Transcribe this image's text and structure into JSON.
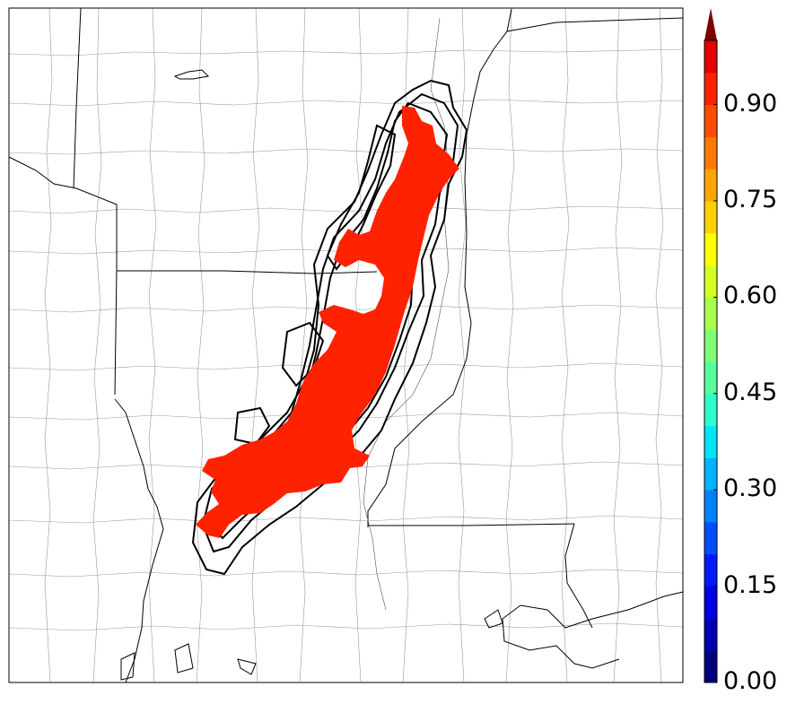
{
  "colorbar": {
    "ticks": [
      {
        "value": 0.0,
        "label": "0.00"
      },
      {
        "value": 0.15,
        "label": "0.15"
      },
      {
        "value": 0.3,
        "label": "0.30"
      },
      {
        "value": 0.45,
        "label": "0.45"
      },
      {
        "value": 0.6,
        "label": "0.60"
      },
      {
        "value": 0.75,
        "label": "0.75"
      },
      {
        "value": 0.9,
        "label": "0.90"
      }
    ],
    "min": 0.0,
    "max": 1.0,
    "levels": 20,
    "extend": "max",
    "extend_color": "#800000",
    "colors": [
      "#00007f",
      "#0000b2",
      "#0000e5",
      "#0019ff",
      "#004cff",
      "#0080ff",
      "#00b2ff",
      "#00e5f7",
      "#2bffcc",
      "#56ff9f",
      "#80ff77",
      "#a9ff4d",
      "#d4ff23",
      "#ffff00",
      "#ffd000",
      "#ffa400",
      "#ff7800",
      "#ff4c00",
      "#ff2000",
      "#e50000"
    ]
  },
  "map": {
    "region": "Lower Mississippi Valley",
    "fill_color": "#ff2200",
    "fill_value": 0.95,
    "contour_color": "#000000"
  }
}
